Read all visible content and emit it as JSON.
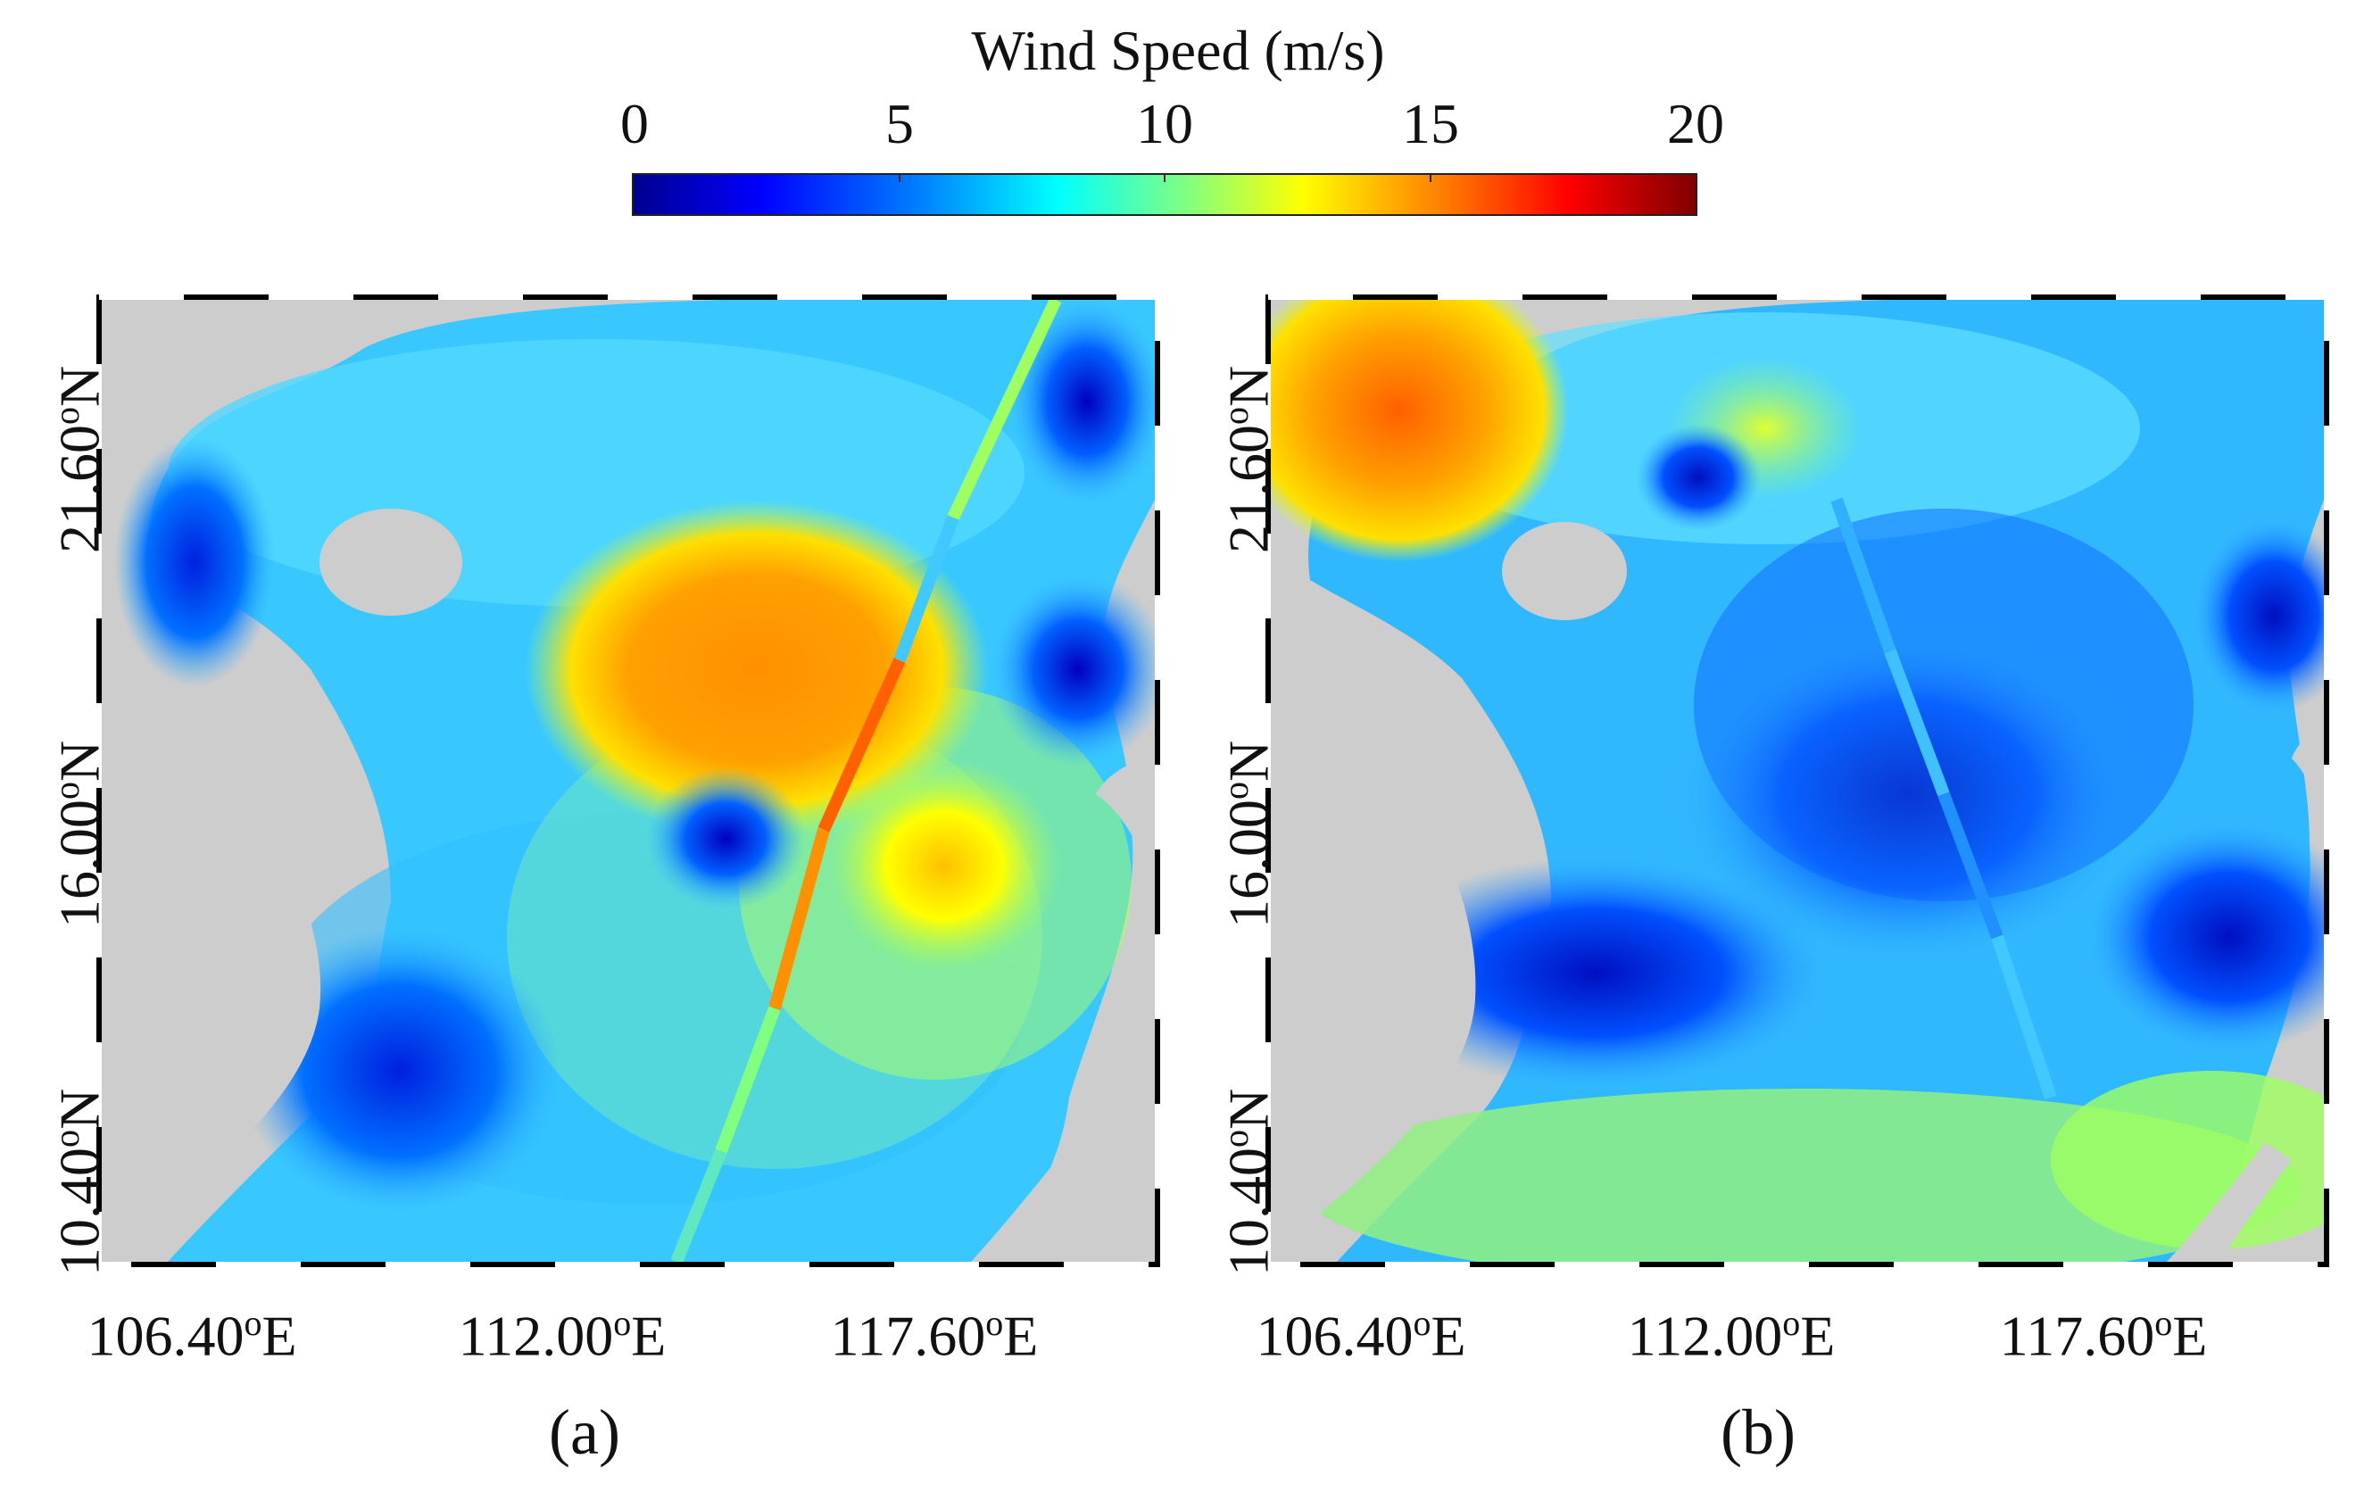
{
  "colorbar": {
    "title": "Wind Speed (m/s)",
    "ticks": [
      "0",
      "5",
      "10",
      "15",
      "20"
    ],
    "range": [
      0,
      20
    ],
    "colormap": "jet"
  },
  "colors": {
    "land": "#cdcdcd",
    "frame": "#000000",
    "background": "#ffffff"
  },
  "axes": {
    "lon_labels": [
      "106.40°E",
      "112.00°E",
      "117.60°E"
    ],
    "lat_labels": [
      "21.60°N",
      "16.00°N",
      "10.40°N"
    ],
    "lon_super": {
      "value": "106.40",
      "deg": "o",
      "dir": "E"
    },
    "lon_labels_split": [
      {
        "value": "106.40",
        "deg": "o",
        "dir": "E"
      },
      {
        "value": "112.00",
        "deg": "o",
        "dir": "E"
      },
      {
        "value": "117.60",
        "deg": "o",
        "dir": "E"
      }
    ],
    "lat_labels_split": [
      {
        "value": "21.60",
        "deg": "o",
        "dir": "N"
      },
      {
        "value": "16.00",
        "deg": "o",
        "dir": "N"
      },
      {
        "value": "10.40",
        "deg": "o",
        "dir": "N"
      }
    ]
  },
  "panels": [
    {
      "label": "(a)",
      "max_wind_region": "central basin ~14 m/s",
      "track": "satellite along-track swath"
    },
    {
      "label": "(b)",
      "max_wind_region": "Gulf of Tonkin ~14 m/s",
      "track": "satellite along-track swath"
    }
  ]
}
